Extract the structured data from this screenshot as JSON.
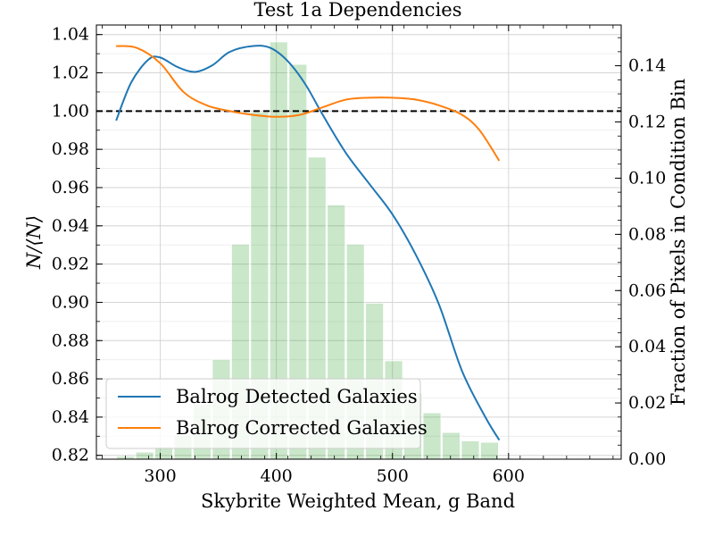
{
  "chart_data": {
    "type": "line",
    "title": "Test 1a Dependencies",
    "xlabel": "Skybrite Weighted Mean, g Band",
    "ylabel": "N/⟨N⟩",
    "ylabel_right": "Fraction of Pixels in Condition Bin",
    "xlim": [
      245,
      697
    ],
    "ylim": [
      0.818,
      1.045
    ],
    "ylim_right": [
      0.0,
      0.1545
    ],
    "x_ticks": [
      "300",
      "400",
      "500",
      "600"
    ],
    "y_ticks": [
      "0.82",
      "0.84",
      "0.86",
      "0.88",
      "0.90",
      "0.92",
      "0.94",
      "0.96",
      "0.98",
      "1.00",
      "1.02",
      "1.04"
    ],
    "y_right_ticks": [
      "0.00",
      "0.02",
      "0.04",
      "0.06",
      "0.08",
      "0.10",
      "0.12",
      "0.14"
    ],
    "reference_line": {
      "y": 1.0,
      "style": "dashed",
      "color": "#000000"
    },
    "grid": true,
    "legend_position": "lower-left",
    "series": [
      {
        "name": "Balrog Detected Galaxies",
        "color": "#1f77b4",
        "x": [
          262,
          275,
          290,
          300,
          315,
          330,
          345,
          360,
          380,
          395,
          410,
          425,
          440,
          460,
          480,
          500,
          520,
          540,
          560,
          580,
          592
        ],
        "y": [
          0.995,
          1.015,
          1.027,
          1.028,
          1.023,
          1.0205,
          1.024,
          1.031,
          1.034,
          1.033,
          1.026,
          1.014,
          0.998,
          0.978,
          0.962,
          0.946,
          0.925,
          0.899,
          0.864,
          0.84,
          0.828
        ]
      },
      {
        "name": "Balrog Corrected Galaxies",
        "color": "#ff7f0e",
        "x": [
          262,
          280,
          300,
          320,
          340,
          360,
          380,
          400,
          420,
          440,
          460,
          480,
          500,
          520,
          540,
          560,
          575,
          592
        ],
        "y": [
          1.034,
          1.033,
          1.025,
          1.01,
          1.003,
          1.0,
          0.998,
          0.997,
          0.998,
          1.002,
          1.006,
          1.007,
          1.007,
          1.006,
          1.003,
          0.998,
          0.99,
          0.974
        ]
      }
    ],
    "histogram": {
      "color": "#2ca02c",
      "opacity": 0.25,
      "bin_edges": [
        262,
        278.5,
        295,
        311.5,
        328,
        344.5,
        361,
        377.5,
        394,
        410.5,
        427,
        443.5,
        460,
        476.5,
        493,
        509.5,
        526,
        542.5,
        559,
        575.5,
        592
      ],
      "values": [
        0.001,
        0.0025,
        0.0045,
        0.0085,
        0.0195,
        0.0355,
        0.0765,
        0.1235,
        0.1485,
        0.1405,
        0.1075,
        0.0905,
        0.0765,
        0.0555,
        0.035,
        0.0235,
        0.0165,
        0.0095,
        0.0065,
        0.006
      ]
    }
  }
}
